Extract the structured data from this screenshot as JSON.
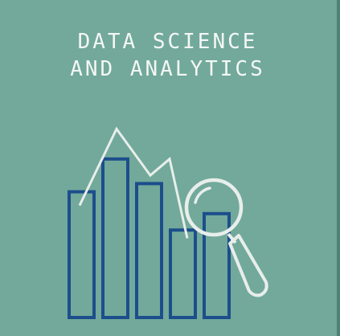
{
  "title": {
    "line1": "DATA SCIENCE",
    "line2": "AND ANALYTICS"
  },
  "illustration": {
    "bar_levels": [
      0.46,
      0.58,
      0.49,
      0.32,
      0.38
    ],
    "trend_levels": [
      0.41,
      0.69,
      0.52,
      0.58,
      0.29
    ],
    "magnifier": "magnifier-icon"
  },
  "colors": {
    "background": "#72a99a",
    "edge": "#4f8174",
    "bars": "#1c4e8c",
    "line": "#e8eeeb",
    "text": "#f4f7f5"
  }
}
